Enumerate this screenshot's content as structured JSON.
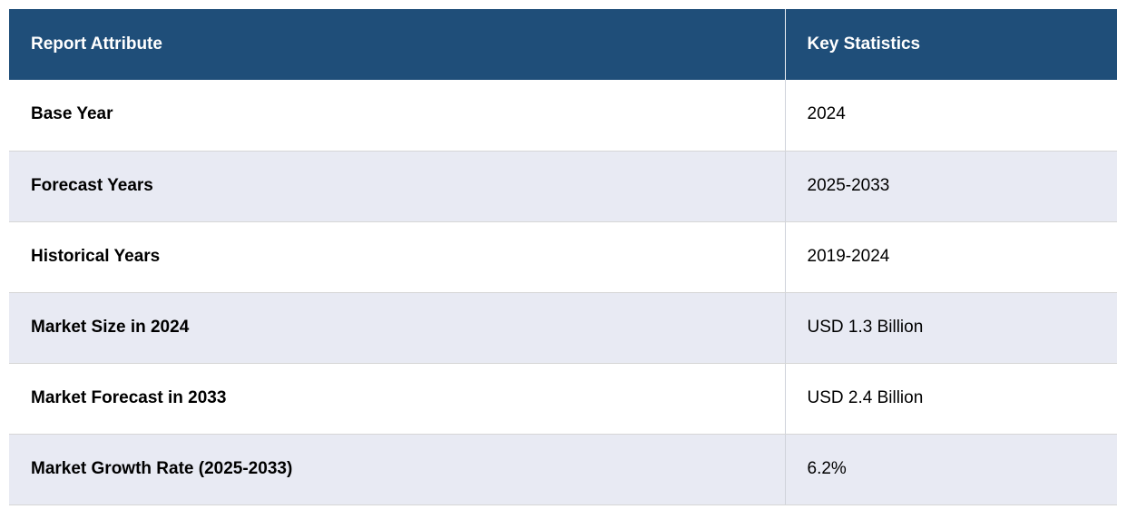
{
  "table": {
    "columns": [
      {
        "label": "Report Attribute"
      },
      {
        "label": "Key Statistics"
      }
    ],
    "rows": [
      {
        "attribute": "Base Year",
        "value": "2024"
      },
      {
        "attribute": "Forecast Years",
        "value": "2025-2033"
      },
      {
        "attribute": "Historical Years",
        "value": "2019-2024"
      },
      {
        "attribute": "Market Size in 2024",
        "value": "USD 1.3 Billion"
      },
      {
        "attribute": "Market Forecast in 2033",
        "value": "USD 2.4 Billion"
      },
      {
        "attribute": "Market Growth Rate (2025-2033)",
        "value": "6.2%"
      }
    ]
  },
  "colors": {
    "header_bg": "#1f4e79",
    "header_text": "#ffffff",
    "row_bg": "#ffffff",
    "row_alt_bg": "#e8eaf3",
    "body_text": "#000000",
    "row_border": "#d6d6d6",
    "column_divider": "#cfd2da"
  },
  "chart_data": {
    "type": "table",
    "columns": [
      "Report Attribute",
      "Key Statistics"
    ],
    "rows": [
      [
        "Base Year",
        "2024"
      ],
      [
        "Forecast Years",
        "2025-2033"
      ],
      [
        "Historical Years",
        "2019-2024"
      ],
      [
        "Market Size in 2024",
        "USD 1.3 Billion"
      ],
      [
        "Market Forecast in 2033",
        "USD 2.4 Billion"
      ],
      [
        "Market Growth Rate (2025-2033)",
        "6.2%"
      ]
    ],
    "notes": {
      "market_size_2024_usd_billion": 1.3,
      "market_forecast_2033_usd_billion": 2.4,
      "cagr_percent_2025_2033": 6.2
    }
  }
}
